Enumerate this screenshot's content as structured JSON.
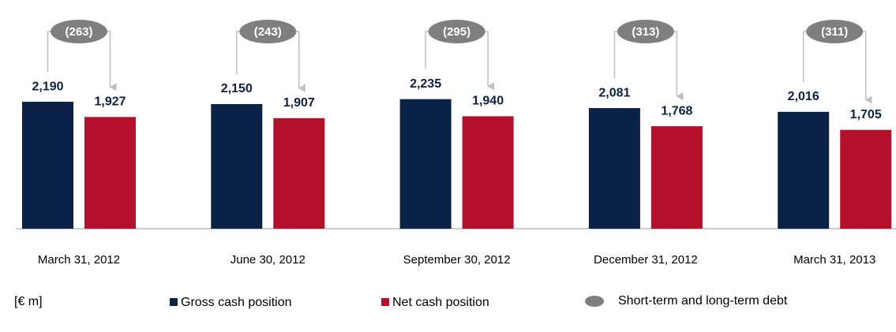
{
  "chart_data": {
    "type": "bar",
    "unit_label": "[€ m]",
    "categories": [
      "March 31, 2012",
      "June 30, 2012",
      "September 30, 2012",
      "December 31, 2012",
      "March 31, 2013"
    ],
    "series": [
      {
        "name": "Gross cash position",
        "color": "#0a2148",
        "values": [
          2190,
          2150,
          2235,
          2081,
          2016
        ],
        "value_labels": [
          "2,190",
          "2,150",
          "2,235",
          "2,081",
          "2,016"
        ]
      },
      {
        "name": "Net cash position",
        "color": "#b5102b",
        "values": [
          1927,
          1907,
          1940,
          1768,
          1705
        ],
        "value_labels": [
          "1,927",
          "1,907",
          "1,940",
          "1,768",
          "1,705"
        ]
      }
    ],
    "debt": {
      "name": "Short-term and long-term debt",
      "color": "#7f7f7f",
      "values": [
        263,
        243,
        295,
        313,
        311
      ],
      "value_labels": [
        "(263)",
        "(243)",
        "(295)",
        "(313)",
        "(311)"
      ]
    }
  }
}
